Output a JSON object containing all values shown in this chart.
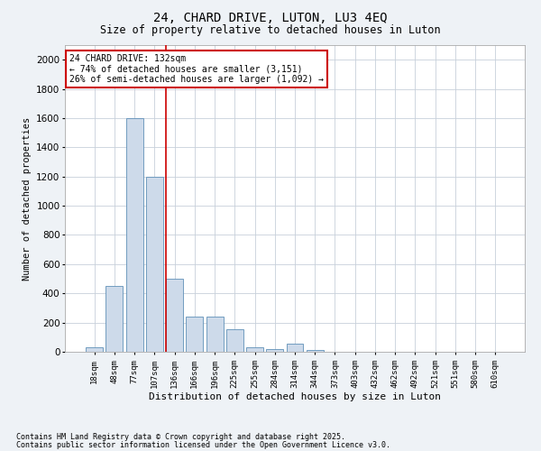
{
  "title1": "24, CHARD DRIVE, LUTON, LU3 4EQ",
  "title2": "Size of property relative to detached houses in Luton",
  "xlabel": "Distribution of detached houses by size in Luton",
  "ylabel": "Number of detached properties",
  "categories": [
    "18sqm",
    "48sqm",
    "77sqm",
    "107sqm",
    "136sqm",
    "166sqm",
    "196sqm",
    "225sqm",
    "255sqm",
    "284sqm",
    "314sqm",
    "344sqm",
    "373sqm",
    "403sqm",
    "432sqm",
    "462sqm",
    "492sqm",
    "521sqm",
    "551sqm",
    "580sqm",
    "610sqm"
  ],
  "values": [
    30,
    450,
    1600,
    1200,
    500,
    240,
    240,
    155,
    30,
    20,
    55,
    10,
    2,
    0,
    0,
    0,
    0,
    0,
    0,
    0,
    0
  ],
  "bar_color": "#cddaea",
  "bar_edge_color": "#6090b8",
  "vline_color": "#cc0000",
  "annotation_text": "24 CHARD DRIVE: 132sqm\n← 74% of detached houses are smaller (3,151)\n26% of semi-detached houses are larger (1,092) →",
  "annotation_box_color": "#cc0000",
  "ylim": [
    0,
    2100
  ],
  "yticks": [
    0,
    200,
    400,
    600,
    800,
    1000,
    1200,
    1400,
    1600,
    1800,
    2000
  ],
  "footer1": "Contains HM Land Registry data © Crown copyright and database right 2025.",
  "footer2": "Contains public sector information licensed under the Open Government Licence v3.0.",
  "background_color": "#eef2f6",
  "plot_bg_color": "#ffffff",
  "grid_color": "#c8d0da"
}
